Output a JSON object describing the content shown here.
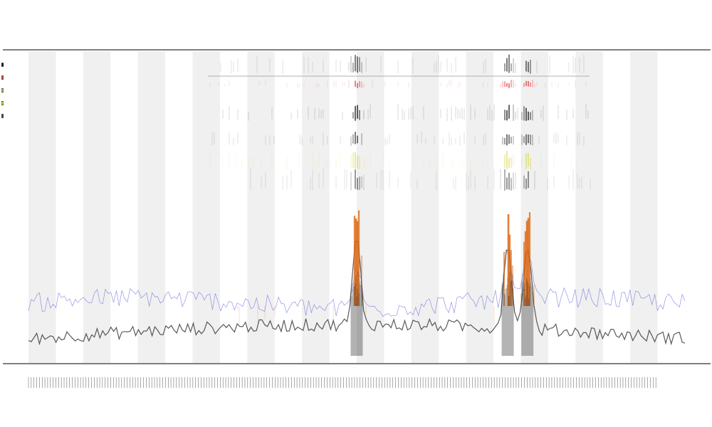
{
  "title": {
    "line1": "",
    "line2": "",
    "line3": ""
  },
  "legend": {
    "items": [
      {
        "label": "",
        "color": "#000000"
      },
      {
        "label": "",
        "color": "#cc4444"
      },
      {
        "label": "",
        "color": "#bbbb55"
      },
      {
        "label": "",
        "color": "#ddcc33"
      },
      {
        "label": "",
        "color": "#444444"
      }
    ]
  },
  "colors": {
    "band_shade": "#f0f0f0",
    "axis": "#333333",
    "black_trace": "#222222",
    "blue_trace": "#6666dd",
    "orange_trace": "#dd6611",
    "yellow_trace": "#dddd66",
    "red_marks": "#ee3333",
    "tick_marks": "#333333"
  },
  "chart_data": {
    "type": "line",
    "title": "",
    "xlabel": "",
    "ylabel": "",
    "n_points": 240,
    "x_tick_count": 230,
    "shaded_band_count": 12,
    "grid": false,
    "legend_placement": "top-left",
    "series": [
      {
        "name": "",
        "color": "#222222"
      },
      {
        "name": "",
        "color": "#6666dd"
      },
      {
        "name": "",
        "color": "#dd6611"
      }
    ],
    "hotspots": [
      0.5,
      0.73,
      0.76
    ]
  }
}
